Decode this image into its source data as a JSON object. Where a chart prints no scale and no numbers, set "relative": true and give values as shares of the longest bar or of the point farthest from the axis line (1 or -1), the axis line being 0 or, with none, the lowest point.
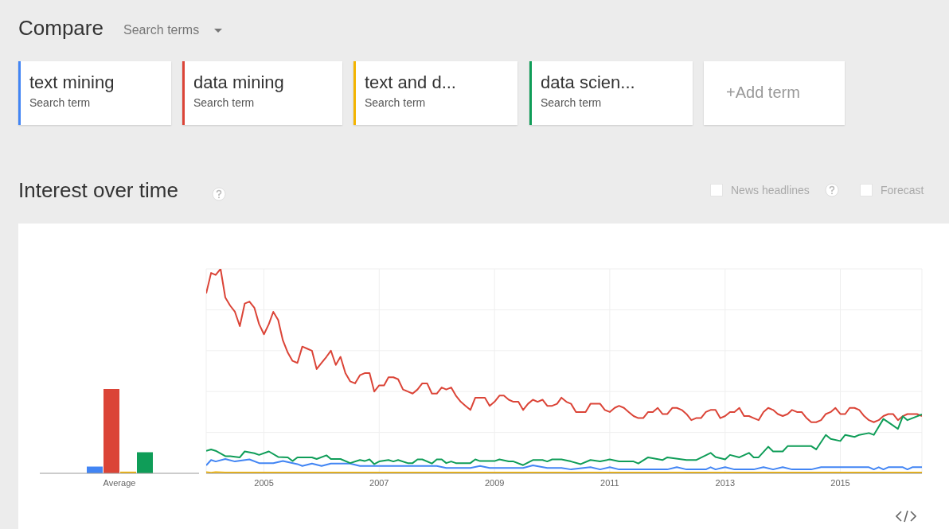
{
  "chart_data": [
    {
      "type": "bar",
      "title": "Compare",
      "subtitle": "Interest over time",
      "annotations": [
        "Search terms",
        "Search term",
        "Search term",
        "Search term",
        "Search term",
        "+Add term",
        "News headlines",
        "Forecast"
      ],
      "legend": "top",
      "relative": true,
      "categories": [
        "Average"
      ],
      "series": [
        {
          "name": "text mining",
          "color": "#4285f4",
          "values": [
            0.08
          ]
        },
        {
          "name": "data mining",
          "color": "#db4437",
          "values": [
            1
          ]
        },
        {
          "name": "text and d...",
          "color": "#f4b400",
          "values": [
            0.02
          ]
        },
        {
          "name": "data scien...",
          "color": "#0f9d58",
          "values": [
            0.25
          ]
        }
      ]
    },
    {
      "type": "line",
      "relative": true,
      "grid": true,
      "xlim": [
        "2004-01",
        "2016-06"
      ],
      "xticks": [
        "2005",
        "2007",
        "2009",
        "2011",
        "2013",
        "2015"
      ],
      "x": [
        "2004-01",
        "2004-02",
        "2004-03",
        "2004-04",
        "2004-05",
        "2004-06",
        "2004-07",
        "2004-08",
        "2004-09",
        "2004-10",
        "2004-11",
        "2004-12",
        "2005-01",
        "2005-02",
        "2005-03",
        "2005-04",
        "2005-05",
        "2005-06",
        "2005-07",
        "2005-08",
        "2005-09",
        "2005-10",
        "2005-11",
        "2005-12",
        "2006-01",
        "2006-02",
        "2006-03",
        "2006-04",
        "2006-05",
        "2006-06",
        "2006-07",
        "2006-08",
        "2006-09",
        "2006-10",
        "2006-11",
        "2006-12",
        "2007-01",
        "2007-02",
        "2007-03",
        "2007-04",
        "2007-05",
        "2007-06",
        "2007-07",
        "2007-08",
        "2007-09",
        "2007-10",
        "2007-11",
        "2007-12",
        "2008-01",
        "2008-02",
        "2008-03",
        "2008-04",
        "2008-05",
        "2008-06",
        "2008-07",
        "2008-08",
        "2008-09",
        "2008-10",
        "2008-11",
        "2008-12",
        "2009-01",
        "2009-02",
        "2009-03",
        "2009-04",
        "2009-05",
        "2009-06",
        "2009-07",
        "2009-08",
        "2009-09",
        "2009-10",
        "2009-11",
        "2009-12",
        "2010-01",
        "2010-02",
        "2010-03",
        "2010-04",
        "2010-05",
        "2010-06",
        "2010-07",
        "2010-08",
        "2010-09",
        "2010-10",
        "2010-11",
        "2010-12",
        "2011-01",
        "2011-02",
        "2011-03",
        "2011-04",
        "2011-05",
        "2011-06",
        "2011-07",
        "2011-08",
        "2011-09",
        "2011-10",
        "2011-11",
        "2011-12",
        "2012-01",
        "2012-02",
        "2012-03",
        "2012-04",
        "2012-05",
        "2012-06",
        "2012-07",
        "2012-08",
        "2012-09",
        "2012-10",
        "2012-11",
        "2012-12",
        "2013-01",
        "2013-02",
        "2013-03",
        "2013-04",
        "2013-05",
        "2013-06",
        "2013-07",
        "2013-08",
        "2013-09",
        "2013-10",
        "2013-11",
        "2013-12",
        "2014-01",
        "2014-02",
        "2014-03",
        "2014-04",
        "2014-05",
        "2014-06",
        "2014-07",
        "2014-08",
        "2014-09",
        "2014-10",
        "2014-11",
        "2014-12",
        "2015-01",
        "2015-02",
        "2015-03",
        "2015-04",
        "2015-05",
        "2015-06",
        "2015-07",
        "2015-08",
        "2015-09",
        "2015-10",
        "2015-11",
        "2015-12",
        "2016-01",
        "2016-02",
        "2016-03",
        "2016-04",
        "2016-05",
        "2016-06"
      ],
      "series": [
        {
          "color": "#4285f4",
          "x": [
            "2004-01",
            "2004-02",
            "2004-03",
            "2004-05",
            "2004-07",
            "2004-10",
            "2004-12",
            "2005-03",
            "2005-05",
            "2005-08",
            "2005-09",
            "2005-11",
            "2006-01",
            "2006-03",
            "2006-07",
            "2006-09",
            "2008-01",
            "2008-03",
            "2008-08",
            "2008-10",
            "2008-12",
            "2009-07",
            "2009-09",
            "2009-12",
            "2010-03",
            "2010-05",
            "2010-09",
            "2010-11",
            "2011-01",
            "2011-03",
            "2012-01",
            "2012-03",
            "2012-05",
            "2012-09",
            "2012-10",
            "2012-11",
            "2013-01",
            "2013-03",
            "2013-07",
            "2013-09",
            "2013-11",
            "2014-01",
            "2014-03",
            "2014-07",
            "2014-09",
            "2015-07",
            "2015-08",
            "2015-09",
            "2015-10",
            "2015-11",
            "2016-02",
            "2016-03",
            "2016-04",
            "2016-06"
          ],
          "values": [
            0.039,
            0.065,
            0.058,
            0.07,
            0.058,
            0.068,
            0.05,
            0.05,
            0.06,
            0.045,
            0.036,
            0.048,
            0.036,
            0.048,
            0.048,
            0.036,
            0.036,
            0.026,
            0.026,
            0.036,
            0.026,
            0.026,
            0.039,
            0.026,
            0.026,
            0.019,
            0.03,
            0.019,
            0.03,
            0.019,
            0.019,
            0.03,
            0.019,
            0.019,
            0.03,
            0.019,
            0.03,
            0.019,
            0.019,
            0.03,
            0.019,
            0.03,
            0.019,
            0.019,
            0.03,
            0.03,
            0.019,
            0.03,
            0.019,
            0.03,
            0.03,
            0.019,
            0.03,
            0.03
          ]
        },
        {
          "color": "#db4437",
          "values": [
            0.88,
            0.98,
            0.97,
            1,
            0.86,
            0.82,
            0.79,
            0.72,
            0.83,
            0.84,
            0.81,
            0.73,
            0.68,
            0.73,
            0.79,
            0.75,
            0.65,
            0.59,
            0.55,
            0.54,
            0.62,
            0.61,
            0.6,
            0.51,
            0.54,
            0.57,
            0.6,
            0.53,
            0.57,
            0.49,
            0.45,
            0.44,
            0.48,
            0.49,
            0.49,
            0.4,
            0.43,
            0.43,
            0.47,
            0.47,
            0.46,
            0.41,
            0.4,
            0.39,
            0.41,
            0.44,
            0.44,
            0.39,
            0.39,
            0.42,
            0.41,
            0.42,
            0.38,
            0.35,
            0.33,
            0.31,
            0.37,
            0.37,
            0.37,
            0.33,
            0.35,
            0.38,
            0.38,
            0.36,
            0.35,
            0.35,
            0.31,
            0.34,
            0.36,
            0.35,
            0.36,
            0.33,
            0.33,
            0.34,
            0.37,
            0.35,
            0.34,
            0.3,
            0.3,
            0.3,
            0.34,
            0.34,
            0.34,
            0.31,
            0.3,
            0.32,
            0.33,
            0.32,
            0.3,
            0.28,
            0.27,
            0.27,
            0.3,
            0.3,
            0.32,
            0.29,
            0.29,
            0.32,
            0.32,
            0.31,
            0.29,
            0.26,
            0.27,
            0.27,
            0.3,
            0.31,
            0.31,
            0.27,
            0.28,
            0.3,
            0.3,
            0.32,
            0.28,
            0.28,
            0.27,
            0.26,
            0.3,
            0.32,
            0.31,
            0.29,
            0.28,
            0.29,
            0.31,
            0.3,
            0.3,
            0.27,
            0.25,
            0.25,
            0.26,
            0.29,
            0.3,
            0.32,
            0.29,
            0.29,
            0.32,
            0.32,
            0.31,
            0.28,
            0.26,
            0.25,
            0.26,
            0.28,
            0.29,
            0.29,
            0.26,
            0.28,
            0.29,
            0.29,
            0.29,
            0.28
          ]
        },
        {
          "color": "#f4b400",
          "x": [
            "2004-01",
            "2004-02",
            "2004-03",
            "2004-05",
            "2016-06"
          ],
          "values": [
            0.006,
            0.003,
            0.006,
            0.004,
            0.004
          ]
        },
        {
          "color": "#0f9d58",
          "x": [
            "2004-01",
            "2004-02",
            "2004-03",
            "2004-05",
            "2004-06",
            "2004-08",
            "2004-09",
            "2004-11",
            "2004-12",
            "2005-02",
            "2005-04",
            "2005-06",
            "2005-07",
            "2005-08",
            "2005-11",
            "2005-12",
            "2006-02",
            "2006-03",
            "2006-05",
            "2006-07",
            "2006-09",
            "2006-10",
            "2006-11",
            "2006-12",
            "2007-01",
            "2007-03",
            "2007-04",
            "2007-05",
            "2007-07",
            "2007-08",
            "2007-09",
            "2007-10",
            "2007-12",
            "2008-01",
            "2008-02",
            "2008-03",
            "2008-04",
            "2008-05",
            "2008-08",
            "2008-09",
            "2008-10",
            "2009-01",
            "2009-02",
            "2009-04",
            "2009-05",
            "2009-07",
            "2009-09",
            "2009-11",
            "2009-12",
            "2010-01",
            "2010-03",
            "2010-05",
            "2010-07",
            "2010-09",
            "2010-11",
            "2011-01",
            "2011-03",
            "2011-06",
            "2011-07",
            "2011-09",
            "2011-12",
            "2012-01",
            "2012-05",
            "2012-07",
            "2012-10",
            "2012-11",
            "2013-01",
            "2013-02",
            "2013-04",
            "2013-06",
            "2013-07",
            "2013-08",
            "2013-10",
            "2013-11",
            "2014-01",
            "2014-02",
            "2014-07",
            "2014-08",
            "2014-10",
            "2014-11",
            "2015-01",
            "2015-02",
            "2015-04",
            "2015-05",
            "2015-07",
            "2015-08",
            "2015-10",
            "2015-12",
            "2016-01",
            "2016-02",
            "2016-03",
            "2016-06"
          ],
          "values": [
            0.11,
            0.117,
            0.11,
            0.084,
            0.084,
            0.078,
            0.107,
            0.098,
            0.09,
            0.107,
            0.08,
            0.078,
            0.06,
            0.078,
            0.078,
            0.07,
            0.088,
            0.07,
            0.07,
            0.05,
            0.065,
            0.06,
            0.068,
            0.045,
            0.058,
            0.065,
            0.058,
            0.065,
            0.05,
            0.05,
            0.068,
            0.068,
            0.048,
            0.068,
            0.068,
            0.05,
            0.058,
            0.05,
            0.05,
            0.068,
            0.06,
            0.06,
            0.068,
            0.058,
            0.058,
            0.04,
            0.065,
            0.065,
            0.058,
            0.068,
            0.068,
            0.058,
            0.045,
            0.065,
            0.058,
            0.068,
            0.058,
            0.058,
            0.048,
            0.078,
            0.065,
            0.078,
            0.065,
            0.065,
            0.1,
            0.08,
            0.068,
            0.09,
            0.078,
            0.1,
            0.078,
            0.078,
            0.13,
            0.107,
            0.107,
            0.133,
            0.133,
            0.117,
            0.188,
            0.168,
            0.158,
            0.188,
            0.178,
            0.188,
            0.197,
            0.188,
            0.266,
            0.234,
            0.217,
            0.279,
            0.26,
            0.288
          ]
        }
      ]
    }
  ]
}
